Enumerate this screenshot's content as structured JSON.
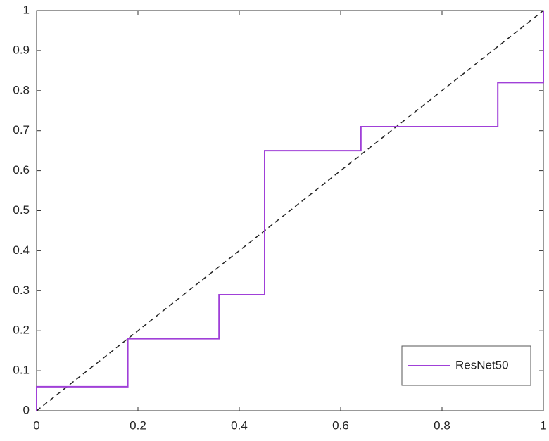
{
  "chart_data": {
    "type": "line",
    "series": [
      {
        "name": "ResNet50",
        "color": "#a040d8",
        "x": [
          0,
          0,
          0.18,
          0.18,
          0.36,
          0.36,
          0.45,
          0.45,
          0.64,
          0.64,
          0.91,
          0.91,
          1,
          1
        ],
        "values": [
          0,
          0.06,
          0.06,
          0.18,
          0.18,
          0.29,
          0.29,
          0.65,
          0.65,
          0.71,
          0.71,
          0.82,
          0.82,
          1
        ],
        "step": true
      }
    ],
    "reference_line": {
      "x": [
        0,
        1
      ],
      "values": [
        0,
        1
      ],
      "color": "#222222",
      "dashed": true
    },
    "xlim": [
      0,
      1
    ],
    "ylim": [
      0,
      1
    ],
    "xticks": [
      0,
      0.2,
      0.4,
      0.6,
      0.8,
      1
    ],
    "yticks": [
      0,
      0.1,
      0.2,
      0.3,
      0.4,
      0.5,
      0.6,
      0.7,
      0.8,
      0.9,
      1
    ],
    "grid": false,
    "legend": "lower right"
  }
}
